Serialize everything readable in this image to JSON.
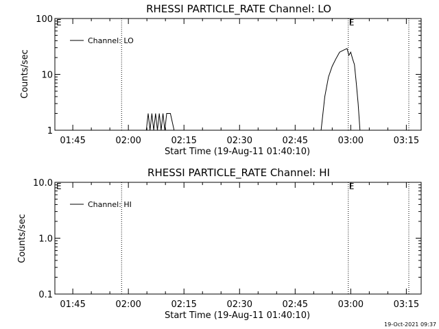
{
  "chart_data": [
    {
      "type": "line",
      "title": "RHESSI PARTICLE_RATE Channel: LO",
      "xlabel": "Start Time (19-Aug-11 01:40:10)",
      "ylabel": "Counts/sec",
      "yscale": "log",
      "ylim": [
        1,
        100
      ],
      "xlim": [
        "01:40:10",
        "03:19:00"
      ],
      "x_ticks": [
        "01:45",
        "02:00",
        "02:15",
        "02:30",
        "02:45",
        "03:00",
        "03:15"
      ],
      "y_ticks": [
        "1",
        "10",
        "100"
      ],
      "legend": "top-left",
      "grid": false,
      "series": [
        {
          "name": "Channel: LO",
          "color": "#000000",
          "points": [
            [
              "02:04:50",
              1
            ],
            [
              "02:05:20",
              2
            ],
            [
              "02:05:50",
              1
            ],
            [
              "02:06:20",
              2
            ],
            [
              "02:06:50",
              1
            ],
            [
              "02:07:20",
              2
            ],
            [
              "02:07:50",
              1
            ],
            [
              "02:08:20",
              2
            ],
            [
              "02:08:50",
              1
            ],
            [
              "02:09:20",
              2
            ],
            [
              "02:09:50",
              1
            ],
            [
              "02:10:20",
              2
            ],
            [
              "02:10:50",
              2
            ],
            [
              "02:11:20",
              2
            ],
            [
              "02:12:20",
              1
            ],
            [
              "02:52:00",
              1
            ],
            [
              "02:53:00",
              4
            ],
            [
              "02:54:00",
              9
            ],
            [
              "02:55:00",
              14
            ],
            [
              "02:56:00",
              19
            ],
            [
              "02:57:00",
              25
            ],
            [
              "02:58:00",
              27
            ],
            [
              "02:59:00",
              29
            ],
            [
              "02:59:30",
              22
            ],
            [
              "03:00:00",
              25
            ],
            [
              "03:00:30",
              19
            ],
            [
              "03:01:00",
              15
            ],
            [
              "03:01:30",
              7
            ],
            [
              "03:02:00",
              3
            ],
            [
              "03:02:30",
              1
            ]
          ]
        }
      ],
      "markers": [
        {
          "time": "01:58:10",
          "label": ""
        },
        {
          "time": "02:59:20",
          "label": "E"
        },
        {
          "time": "03:15:40",
          "label": ""
        }
      ],
      "corner_marker": "E"
    },
    {
      "type": "line",
      "title": "RHESSI PARTICLE_RATE Channel: HI",
      "xlabel": "Start Time (19-Aug-11 01:40:10)",
      "ylabel": "Counts/sec",
      "yscale": "log",
      "ylim": [
        0.1,
        10
      ],
      "xlim": [
        "01:40:10",
        "03:19:00"
      ],
      "x_ticks": [
        "01:45",
        "02:00",
        "02:15",
        "02:30",
        "02:45",
        "03:00",
        "03:15"
      ],
      "y_ticks": [
        "0.1",
        "1.0",
        "10.0"
      ],
      "legend": "top-left",
      "grid": false,
      "series": [
        {
          "name": "Channel: HI",
          "color": "#000000",
          "points": []
        }
      ],
      "markers": [
        {
          "time": "01:58:10",
          "label": ""
        },
        {
          "time": "02:59:20",
          "label": "E"
        },
        {
          "time": "03:15:40",
          "label": ""
        }
      ],
      "corner_marker": "E"
    }
  ],
  "footer": {
    "timestamp": "19-Oct-2021 09:37"
  }
}
